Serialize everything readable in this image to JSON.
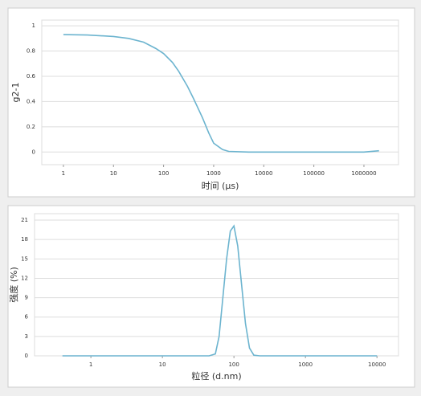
{
  "chart_data": [
    {
      "type": "line",
      "x_label": "时间 (μs)",
      "y_label": "g2-1",
      "xscale": "log",
      "grid": true,
      "xlim": [
        0.37,
        4900000
      ],
      "xticks": [
        1,
        10,
        100,
        1000,
        10000,
        100000,
        1000000
      ],
      "ylim": [
        -0.1,
        1.045
      ],
      "yticks": [
        0,
        0.2,
        0.4,
        0.6,
        0.8,
        1
      ],
      "series": [
        {
          "color": "#6cb4cf",
          "x": [
            1,
            3,
            10,
            20,
            40,
            70,
            100,
            150,
            200,
            300,
            400,
            600,
            800,
            1000,
            1500,
            2000,
            5000,
            10000,
            100000,
            1000000,
            2000000
          ],
          "values": [
            0.93,
            0.927,
            0.915,
            0.9,
            0.87,
            0.82,
            0.78,
            0.71,
            0.64,
            0.52,
            0.42,
            0.27,
            0.15,
            0.07,
            0.02,
            0.005,
            0,
            0,
            0,
            0,
            0.01
          ]
        }
      ]
    },
    {
      "type": "line",
      "x_label": "粒径 (d.nm)",
      "y_label": "强度 (%)",
      "xscale": "log",
      "grid": true,
      "xlim": [
        0.163,
        20000
      ],
      "xticks": [
        1,
        10,
        100,
        1000,
        10000
      ],
      "ylim": [
        0,
        22
      ],
      "yticks": [
        0,
        3,
        6,
        9,
        12,
        15,
        18,
        21
      ],
      "series": [
        {
          "color": "#6cb4cf",
          "x": [
            0.4,
            1,
            10,
            45,
            55,
            62,
            70,
            79,
            89,
            100,
            113,
            128,
            145,
            165,
            190,
            230,
            1000,
            10000
          ],
          "values": [
            0,
            0,
            0,
            0,
            0.3,
            3,
            9,
            15,
            19.3,
            20.1,
            17,
            11,
            5,
            1.2,
            0.1,
            0,
            0,
            0
          ]
        }
      ]
    }
  ]
}
